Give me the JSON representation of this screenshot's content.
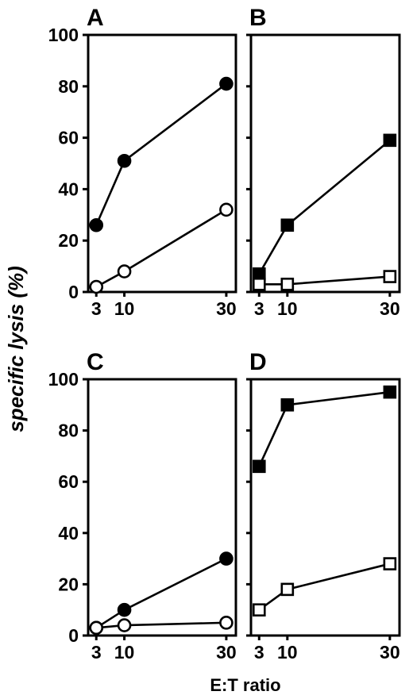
{
  "figure": {
    "ylabel": "specific lysis (%)",
    "xlabel": "E:T ratio"
  },
  "chart_data": [
    {
      "panel": "A",
      "type": "line",
      "x": [
        3,
        10,
        30
      ],
      "ylim": [
        0,
        100
      ],
      "yticks": [
        0,
        20,
        40,
        60,
        80,
        100
      ],
      "xticks": [
        3,
        10,
        30
      ],
      "series": [
        {
          "marker": "circle",
          "filled": true,
          "values": [
            26,
            51,
            81
          ]
        },
        {
          "marker": "circle",
          "filled": false,
          "values": [
            2,
            8,
            32
          ]
        }
      ]
    },
    {
      "panel": "B",
      "type": "line",
      "x": [
        3,
        10,
        30
      ],
      "ylim": [
        0,
        100
      ],
      "yticks": [
        0,
        20,
        40,
        60,
        80,
        100
      ],
      "xticks": [
        3,
        10,
        30
      ],
      "series": [
        {
          "marker": "square",
          "filled": true,
          "values": [
            7,
            26,
            59
          ]
        },
        {
          "marker": "square",
          "filled": false,
          "values": [
            3,
            3,
            6
          ]
        }
      ]
    },
    {
      "panel": "C",
      "type": "line",
      "x": [
        3,
        10,
        30
      ],
      "ylim": [
        0,
        100
      ],
      "yticks": [
        0,
        20,
        40,
        60,
        80,
        100
      ],
      "xticks": [
        3,
        10,
        30
      ],
      "series": [
        {
          "marker": "circle",
          "filled": true,
          "values": [
            3,
            10,
            30
          ]
        },
        {
          "marker": "circle",
          "filled": false,
          "values": [
            3,
            4,
            5
          ]
        }
      ]
    },
    {
      "panel": "D",
      "type": "line",
      "x": [
        3,
        10,
        30
      ],
      "ylim": [
        0,
        100
      ],
      "yticks": [
        0,
        20,
        40,
        60,
        80,
        100
      ],
      "xticks": [
        3,
        10,
        30
      ],
      "series": [
        {
          "marker": "square",
          "filled": true,
          "values": [
            66,
            90,
            95
          ]
        },
        {
          "marker": "square",
          "filled": false,
          "values": [
            10,
            18,
            28
          ]
        }
      ]
    }
  ]
}
